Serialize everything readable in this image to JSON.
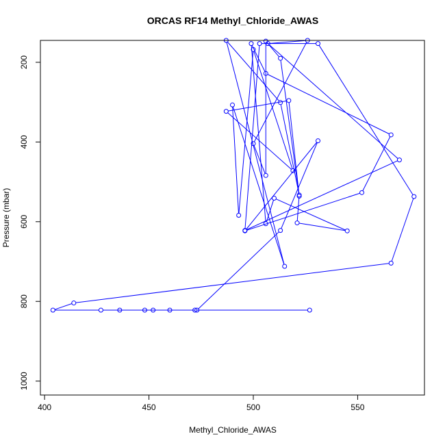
{
  "chart_data": {
    "type": "line",
    "title": "ORCAS RF14 Methyl_Chloride_AWAS",
    "xlabel": "Methyl_Chloride_AWAS",
    "ylabel": "Pressure (mbar)",
    "xlim": [
      398,
      582
    ],
    "ylim": [
      1035,
      145
    ],
    "y_reversed": true,
    "x_ticks": [
      400,
      450,
      500,
      550
    ],
    "y_ticks": [
      200,
      400,
      600,
      800,
      1000
    ],
    "grid": false,
    "legend": "none",
    "line_color": "#0000ff",
    "series": [
      {
        "marker": "open-circle",
        "points": [
          [
            527,
            822
          ],
          [
            472,
            822
          ],
          [
            452,
            822
          ],
          [
            427,
            822
          ],
          [
            404,
            822
          ],
          [
            414,
            804
          ],
          [
            566,
            704
          ],
          [
            577,
            537
          ],
          [
            531,
            153
          ],
          [
            503,
            153
          ],
          [
            496,
            622
          ],
          [
            570,
            445
          ],
          [
            507,
            153
          ],
          [
            526,
            145
          ],
          [
            500,
            404
          ],
          [
            506,
            484
          ],
          [
            506,
            147
          ],
          [
            513,
            190
          ],
          [
            522,
            536
          ],
          [
            517,
            296
          ],
          [
            487,
            323
          ],
          [
            519,
            472
          ],
          [
            500,
            168
          ],
          [
            493,
            584
          ],
          [
            490,
            307
          ],
          [
            515,
            712
          ],
          [
            487,
            145
          ],
          [
            513,
            301
          ],
          [
            522,
            533
          ],
          [
            521,
            603
          ],
          [
            545,
            623
          ],
          [
            510,
            541
          ],
          [
            506,
            605
          ],
          [
            499,
            153
          ],
          [
            506,
            228
          ],
          [
            566,
            382
          ],
          [
            552,
            527
          ],
          [
            496,
            623
          ],
          [
            531,
            397
          ],
          [
            513,
            622
          ],
          [
            473,
            822
          ],
          [
            448,
            822
          ],
          [
            436,
            822
          ],
          [
            460,
            822
          ]
        ]
      }
    ]
  }
}
